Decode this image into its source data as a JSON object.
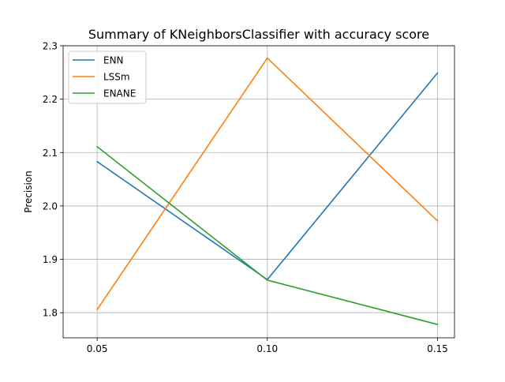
{
  "chart_data": {
    "type": "line",
    "title": "Summary of KNeighborsClassifier with accuracy score",
    "xlabel": "",
    "ylabel": "Precision",
    "x": [
      0.05,
      0.1,
      0.15
    ],
    "x_tick_labels": [
      "0.05",
      "0.10",
      "0.15"
    ],
    "xlim": [
      0.04,
      0.155
    ],
    "ylim": [
      1.753,
      2.3
    ],
    "y_ticks": [
      1.8,
      1.9,
      2.0,
      2.1,
      2.2,
      2.3
    ],
    "y_tick_labels": [
      "1.8",
      "1.9",
      "2.0",
      "2.1",
      "2.2",
      "2.3"
    ],
    "grid": true,
    "legend_position": "top-left",
    "series": [
      {
        "name": "ENN",
        "color": "#1f77b4",
        "values": [
          2.083,
          1.862,
          2.249
        ]
      },
      {
        "name": "LSSm",
        "color": "#ff7f0e",
        "values": [
          1.806,
          2.277,
          1.972
        ]
      },
      {
        "name": "ENANE",
        "color": "#2ca02c",
        "values": [
          2.111,
          1.861,
          1.778
        ]
      }
    ]
  }
}
